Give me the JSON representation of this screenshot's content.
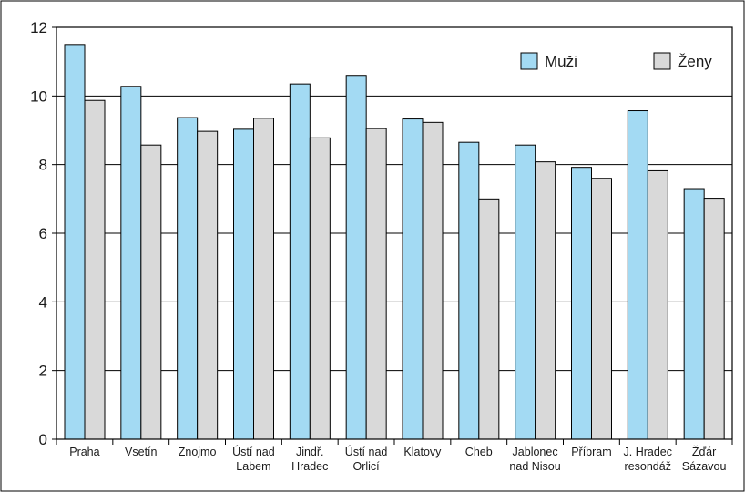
{
  "chart_data": {
    "type": "bar",
    "categories": [
      [
        "Praha"
      ],
      [
        "Vsetín"
      ],
      [
        "Znojmo"
      ],
      [
        "Ústí nad",
        "Labem"
      ],
      [
        "Jindř.",
        "Hradec"
      ],
      [
        "Ústí nad",
        "Orlicí"
      ],
      [
        "Klatovy"
      ],
      [
        "Cheb"
      ],
      [
        "Jablonec",
        "nad Nisou"
      ],
      [
        "Příbram"
      ],
      [
        "J. Hradec",
        "resondáž"
      ],
      [
        "Žďár",
        "Sázavou"
      ]
    ],
    "series": [
      {
        "name": "Muži",
        "color": "#a3daf3",
        "values": [
          11.5,
          10.28,
          9.37,
          9.03,
          10.35,
          10.6,
          9.33,
          8.65,
          8.57,
          7.92,
          9.57,
          7.3
        ]
      },
      {
        "name": "Ženy",
        "color": "#d9d9d9",
        "values": [
          9.87,
          8.57,
          8.97,
          9.35,
          8.78,
          9.05,
          9.23,
          7.0,
          8.08,
          7.6,
          7.82,
          7.02
        ]
      }
    ],
    "ylim": [
      0,
      12
    ],
    "yticks": [
      0,
      2,
      4,
      6,
      8,
      10,
      12
    ],
    "gridlines": true,
    "legend": "top-right"
  }
}
